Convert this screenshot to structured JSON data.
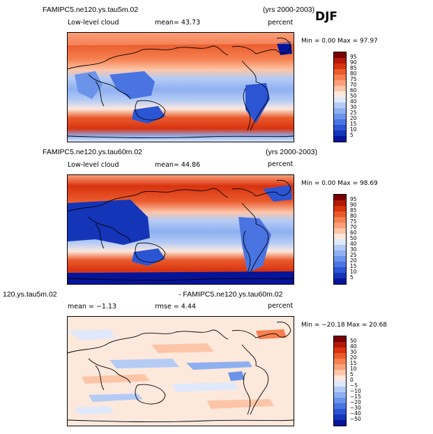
{
  "season_label": "DJF",
  "panels": [
    {
      "case_title": "FAMIPC5.ne120.ys.tau5m.02",
      "years": "(yrs 2000-2003)",
      "field": "Low-level cloud",
      "stat": "mean=  43.73",
      "units": "percent",
      "minmax": "Min =   0.00  Max =  97.97",
      "colorbar": {
        "labels": [
          "95",
          "90",
          "85",
          "80",
          "75",
          "70",
          "60",
          "50",
          "40",
          "30",
          "25",
          "20",
          "15",
          "10",
          "5"
        ],
        "colors": [
          "#7a0000",
          "#b21a08",
          "#d8330f",
          "#ea5b2c",
          "#f6804f",
          "#fba07a",
          "#fcc5a8",
          "#fde8dc",
          "#dfe9fb",
          "#b4cbf6",
          "#8fb0f0",
          "#6b93ea",
          "#4a74e2",
          "#2c55d4",
          "#1535b8",
          "#06149a"
        ]
      }
    },
    {
      "case_title": "FAMIPC5.ne120.ys.tau60m.02",
      "years": "(yrs 2000-2003)",
      "field": "Low-level cloud",
      "stat": "mean=  44.86",
      "units": "percent",
      "minmax": "Min =   0.00  Max =  98.69",
      "colorbar": {
        "labels": [
          "95",
          "90",
          "85",
          "80",
          "75",
          "70",
          "60",
          "50",
          "40",
          "30",
          "25",
          "20",
          "15",
          "10",
          "5"
        ],
        "colors": [
          "#7a0000",
          "#b21a08",
          "#d8330f",
          "#ea5b2c",
          "#f6804f",
          "#fba07a",
          "#fcc5a8",
          "#fde8dc",
          "#dfe9fb",
          "#b4cbf6",
          "#8fb0f0",
          "#6b93ea",
          "#4a74e2",
          "#2c55d4",
          "#1535b8",
          "#06149a"
        ]
      }
    },
    {
      "case_title_left": "120.ys.tau5m.02",
      "case_title_right": "- FAMIPC5.ne120.ys.tau60m.02",
      "stat": "mean =  −1.13",
      "rmse": "rmse =   4.44",
      "units": "percent",
      "minmax": "Min = −20.18  Max =  20.68",
      "colorbar": {
        "labels": [
          "50",
          "40",
          "30",
          "20",
          "15",
          "10",
          "5",
          "0",
          "−5",
          "−10",
          "−15",
          "−20",
          "−30",
          "−40",
          "−50"
        ],
        "colors": [
          "#7a0000",
          "#b21a08",
          "#d8330f",
          "#ea5b2c",
          "#f6804f",
          "#fba07a",
          "#fcc5a8",
          "#fde8dc",
          "#dfe9fb",
          "#b4cbf6",
          "#8fb0f0",
          "#6b93ea",
          "#4a74e2",
          "#2c55d4",
          "#1535b8",
          "#06149a"
        ]
      }
    }
  ]
}
